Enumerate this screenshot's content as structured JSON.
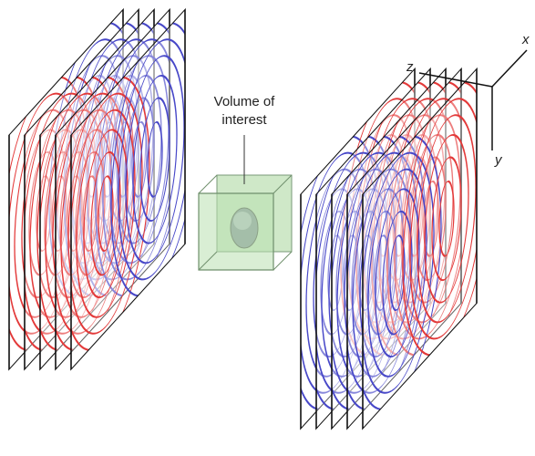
{
  "label": {
    "lines": [
      "Volume of",
      "interest"
    ]
  },
  "axes": {
    "x": "x",
    "y": "y",
    "z": "z"
  }
}
